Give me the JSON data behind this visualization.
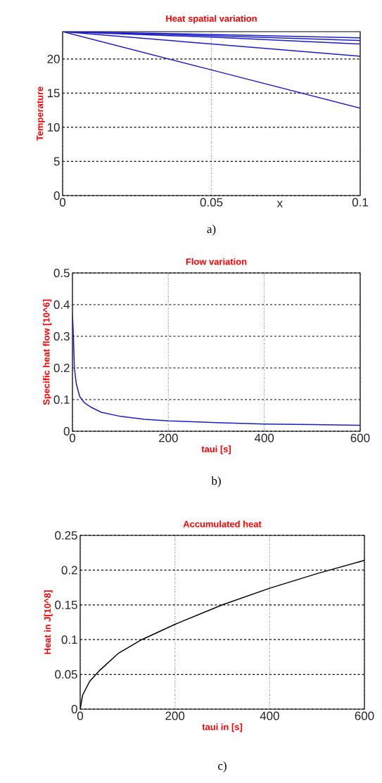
{
  "chart_data": [
    {
      "type": "line",
      "title": "Heat spatial variation",
      "ylabel": "Temperature",
      "xlabel": "x",
      "xlim": [
        0,
        0.1
      ],
      "xticks": [
        0,
        0.05,
        0.1
      ],
      "ylim": [
        0,
        24
      ],
      "yticks": [
        0,
        5,
        10,
        15,
        20
      ],
      "grid": true,
      "annotations": [
        "a)"
      ],
      "series": [
        {
          "color": "#1c1cc8",
          "x": [
            0,
            0.05,
            0.1
          ],
          "values": [
            24,
            23.6,
            23.1
          ]
        },
        {
          "color": "#1c1cc8",
          "x": [
            0,
            0.05,
            0.1
          ],
          "values": [
            24,
            23.4,
            22.7
          ]
        },
        {
          "color": "#1c1cc8",
          "x": [
            0,
            0.05,
            0.1
          ],
          "values": [
            24,
            23.2,
            22.2
          ]
        },
        {
          "color": "#1c1cc8",
          "x": [
            0,
            0.05,
            0.1
          ],
          "values": [
            24,
            22.2,
            20.4
          ]
        },
        {
          "color": "#1c1cc8",
          "x": [
            0,
            0.05,
            0.1
          ],
          "values": [
            24,
            18.4,
            12.8
          ]
        }
      ]
    },
    {
      "type": "line",
      "title": "Flow variation",
      "ylabel": "Specific heat flow [10^6]",
      "xlabel": "taui [s]",
      "xlim": [
        0,
        600
      ],
      "xticks": [
        0,
        200,
        400,
        600
      ],
      "ylim": [
        0,
        0.5
      ],
      "yticks": [
        0,
        0.1,
        0.2,
        0.3,
        0.4,
        0.5
      ],
      "grid": true,
      "annotations": [
        "b)"
      ],
      "series": [
        {
          "color": "#1c1cc8",
          "x": [
            0,
            2,
            4,
            8,
            15,
            25,
            40,
            60,
            100,
            150,
            200,
            300,
            400,
            500,
            600
          ],
          "values": [
            0.37,
            0.3,
            0.2,
            0.15,
            0.11,
            0.09,
            0.075,
            0.06,
            0.047,
            0.038,
            0.033,
            0.027,
            0.023,
            0.021,
            0.019
          ]
        }
      ]
    },
    {
      "type": "line",
      "title": "Accumulated heat",
      "ylabel": "Heat in J[10^8]",
      "xlabel": "taui in [s]",
      "xlim": [
        0,
        600
      ],
      "xticks": [
        0,
        200,
        400,
        600
      ],
      "ylim": [
        0,
        0.25
      ],
      "yticks": [
        0,
        0.05,
        0.1,
        0.15,
        0.2,
        0.25
      ],
      "grid": true,
      "annotations": [
        "c)"
      ],
      "series": [
        {
          "color": "#000000",
          "x": [
            0,
            5,
            20,
            40,
            80,
            130,
            200,
            300,
            400,
            500,
            600
          ],
          "values": [
            0,
            0.02,
            0.04,
            0.055,
            0.08,
            0.1,
            0.122,
            0.15,
            0.174,
            0.195,
            0.214
          ]
        }
      ]
    }
  ]
}
